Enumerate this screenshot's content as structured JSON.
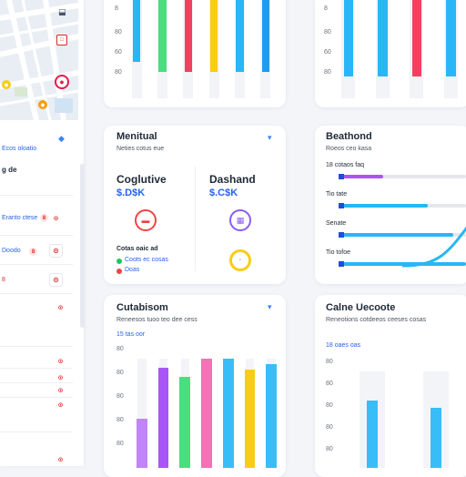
{
  "sidebar": {
    "map_pins": [
      "location-pin-icon",
      "location-pin-icon",
      "location-pin-icon"
    ],
    "link_1": "Ecos oloatio",
    "label_1": "g de",
    "list_rows": [
      {
        "text": "Eranto ctese",
        "badge": "8"
      },
      {
        "text": "Doodo",
        "badge": "8"
      },
      {
        "text": "8",
        "badge": ""
      },
      {
        "text": "",
        "badge": ""
      },
      {
        "text": "",
        "badge": ""
      },
      {
        "text": "",
        "badge": ""
      },
      {
        "text": "",
        "badge": ""
      },
      {
        "text": "",
        "badge": ""
      }
    ]
  },
  "top_left_chart": {
    "bars": [
      {
        "color": "#29b6f6",
        "value": 0.88
      },
      {
        "color": "#4ade80",
        "value": 1.0
      },
      {
        "color": "#f43f5e",
        "value": 1.0
      },
      {
        "color": "#facc15",
        "value": 1.0
      },
      {
        "color": "#29b6f6",
        "value": 1.0
      },
      {
        "color": "#1d9bf0",
        "value": 1.0
      }
    ]
  },
  "top_right_chart": {
    "bars": [
      {
        "color": "#29b6f6",
        "value": 1.0
      },
      {
        "color": "#29b6f6",
        "value": 1.0
      },
      {
        "color": "#f43f5e",
        "value": 1.0
      },
      {
        "color": "#29b6f6",
        "value": 1.0
      }
    ]
  },
  "metrics_card": {
    "title": "Menitual",
    "subtitle": "Neties cotus eue",
    "kpi_a": {
      "label": "Coglutive",
      "value": "$.D$K",
      "icon_color": "#ef4444"
    },
    "kpi_b": {
      "label": "Dashand",
      "value": "$.C$K",
      "icon_color": "#8b5cf6"
    },
    "kpi_c_icon_color": "#facc15",
    "legend_title": "Cotas oaic ad",
    "legend": [
      {
        "color": "#22c55e",
        "text": "Coots ec cosas"
      },
      {
        "color": "#ef4444",
        "text": "Doas"
      }
    ]
  },
  "progress_card": {
    "title": "Beathond",
    "subtitle": "Roeos ceo kasa",
    "rows": [
      {
        "label": "18 cotaos faq",
        "color": "#a855f7",
        "fill": 0.35
      },
      {
        "label": "Tio tate",
        "color": "#29b6f6",
        "fill": 0.7
      },
      {
        "label": "Senate",
        "color": "#29b6f6",
        "fill": 0.9
      },
      {
        "label": "Tio tofoe",
        "color": "#29b6f6",
        "fill": 1.0
      }
    ]
  },
  "bottom_left_chart": {
    "title": "Cutabisom",
    "subtitle": "Reneesos tuoo teo dee cess",
    "y_label": "15 tas oor",
    "ticks": [
      "80",
      "80",
      "80",
      "80",
      "80"
    ],
    "bars": [
      {
        "color": "#c084fc",
        "value": 0.45
      },
      {
        "color": "#a855f7",
        "value": 0.92
      },
      {
        "color": "#4ade80",
        "value": 0.83
      },
      {
        "color": "#f472b6",
        "value": 1.0
      },
      {
        "color": "#38bdf8",
        "value": 1.0
      },
      {
        "color": "#facc15",
        "value": 0.9
      },
      {
        "color": "#38bdf8",
        "value": 0.95
      }
    ]
  },
  "bottom_right_chart": {
    "title": "Calne Uecoote",
    "subtitle": "Reneotions cotdeeos ceeses cosas",
    "y_label": "18 oaes oas",
    "ticks": [
      "80",
      "80",
      "80",
      "80",
      "80"
    ],
    "bars": [
      {
        "color": "#38bdf8",
        "value": 0.7
      },
      {
        "color": "#38bdf8",
        "value": 0.62
      }
    ]
  }
}
